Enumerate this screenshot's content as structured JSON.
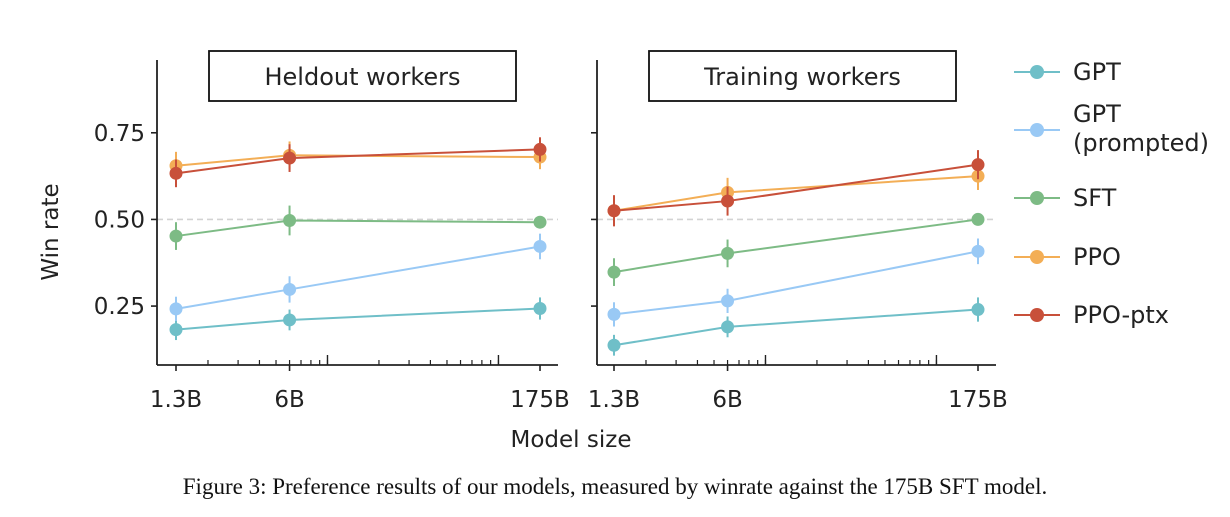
{
  "caption": "Figure 3: Preference results of our models, measured by winrate against the 175B SFT model.",
  "chart_data": {
    "type": "line",
    "xlabel": "Model size",
    "ylabel": "Win rate",
    "x_scale": "log",
    "x_ticks": [
      "1.3B",
      "6B",
      "175B"
    ],
    "y_ticks": [
      "0.25",
      "0.50",
      "0.75"
    ],
    "ylim": [
      0.08,
      0.96
    ],
    "reference_line": 0.5,
    "grid": false,
    "legend": "right",
    "series_meta": [
      {
        "key": "gpt",
        "label": "GPT",
        "color": "#6fbfc8"
      },
      {
        "key": "gpt_prompted",
        "label": "GPT",
        "label2": "(prompted)",
        "color": "#99c9f5"
      },
      {
        "key": "sft",
        "label": "SFT",
        "color": "#7dbb85"
      },
      {
        "key": "ppo",
        "label": "PPO",
        "color": "#f3ae56"
      },
      {
        "key": "ppo_ptx",
        "label": "PPO-ptx",
        "color": "#c8503a"
      }
    ],
    "panels": [
      {
        "title": "Heldout workers",
        "x": [
          1.3,
          6,
          175
        ],
        "series": {
          "gpt": {
            "values": [
              0.182,
              0.21,
              0.243
            ],
            "err": [
              0.03,
              0.03,
              0.032
            ]
          },
          "gpt_prompted": {
            "values": [
              0.242,
              0.298,
              0.422
            ],
            "err": [
              0.035,
              0.038,
              0.037
            ]
          },
          "sft": {
            "values": [
              0.452,
              0.497,
              0.492
            ],
            "err": [
              0.04,
              0.043,
              0.012
            ]
          },
          "ppo": {
            "values": [
              0.655,
              0.685,
              0.68
            ],
            "err": [
              0.04,
              0.04,
              0.035
            ]
          },
          "ppo_ptx": {
            "values": [
              0.633,
              0.677,
              0.702
            ],
            "err": [
              0.04,
              0.04,
              0.035
            ]
          }
        }
      },
      {
        "title": "Training workers",
        "x": [
          1.3,
          6,
          175
        ],
        "series": {
          "gpt": {
            "values": [
              0.137,
              0.19,
              0.24
            ],
            "err": [
              0.03,
              0.03,
              0.035
            ]
          },
          "gpt_prompted": {
            "values": [
              0.226,
              0.265,
              0.408
            ],
            "err": [
              0.035,
              0.035,
              0.037
            ]
          },
          "sft": {
            "values": [
              0.348,
              0.402,
              0.5
            ],
            "err": [
              0.04,
              0.04,
              0.012
            ]
          },
          "ppo": {
            "values": [
              0.525,
              0.578,
              0.625
            ],
            "err": [
              0.04,
              0.042,
              0.04
            ]
          },
          "ppo_ptx": {
            "values": [
              0.525,
              0.553,
              0.658
            ],
            "err": [
              0.045,
              0.042,
              0.042
            ]
          }
        }
      }
    ]
  }
}
